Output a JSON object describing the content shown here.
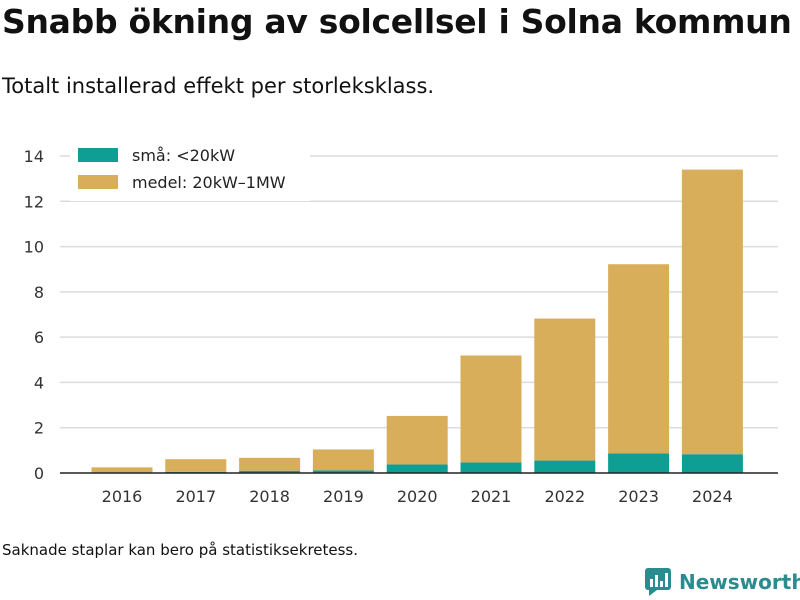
{
  "header": {
    "title": "Snabb ökning av solcellsel i Solna kommun",
    "subtitle": "Totalt installerad effekt per storleksklass."
  },
  "footer": {
    "note": "Saknade staplar kan bero på statistiksekretess.",
    "brand": "Newsworthy"
  },
  "chart_data": {
    "type": "bar",
    "stacked": true,
    "title": "Snabb ökning av solcellsel i Solna kommun",
    "subtitle": "Totalt installerad effekt per storleksklass.",
    "categories": [
      "2016",
      "2017",
      "2018",
      "2019",
      "2020",
      "2021",
      "2022",
      "2023",
      "2024"
    ],
    "series": [
      {
        "name": "små: <20kW",
        "color": "#0f9e94",
        "values": [
          0.03,
          0.05,
          0.1,
          0.12,
          0.38,
          0.47,
          0.55,
          0.86,
          0.83
        ]
      },
      {
        "name": "medel: 20kW–1MW",
        "color": "#d9ae5b",
        "values": [
          0.22,
          0.56,
          0.57,
          0.92,
          2.14,
          4.72,
          6.27,
          8.36,
          12.57
        ]
      }
    ],
    "ylim": [
      0,
      14
    ],
    "yticks": [
      0,
      2,
      4,
      6,
      8,
      10,
      12,
      14
    ],
    "grid": true,
    "legend": "top-left"
  }
}
